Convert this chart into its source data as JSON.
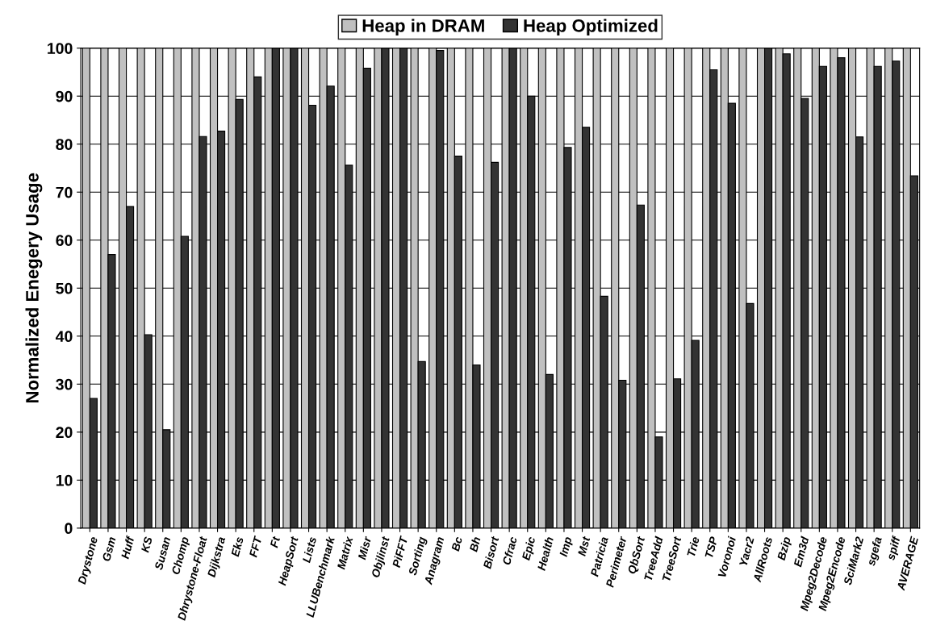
{
  "chart_data": {
    "type": "bar",
    "ylabel": "Normalized Enegery Usage",
    "categories": [
      "Drystone",
      "Gsm",
      "Huff",
      "KS",
      "Susan",
      "Chomp",
      "Dhrystone-Float",
      "Dijkstra",
      "Eks",
      "FFT",
      "Ft",
      "HeapSort",
      "Lists",
      "LLUBenchmark",
      "Matrix",
      "Misr",
      "Objlinst",
      "PiFFT",
      "Sorting",
      "Anagram",
      "Bc",
      "Bh",
      "Bisort",
      "Cfrac",
      "Epic",
      "Health",
      "Imp",
      "Mst",
      "Patricia",
      "Perimeter",
      "QbSort",
      "TreeAdd",
      "TreeSort",
      "Trie",
      "TSP",
      "Voronoi",
      "Yacr2",
      "AllRoots",
      "Bzip",
      "Em3d",
      "Mpeg2Decode",
      "Mpeg2Encode",
      "SciMark2",
      "sgefa",
      "spiff",
      "AVERAGE"
    ],
    "series": [
      {
        "name": "Heap in DRAM",
        "color": "#c0c0c0",
        "values": [
          100,
          100,
          100,
          100,
          100,
          100,
          100,
          100,
          100,
          100,
          100,
          100,
          100,
          100,
          100,
          100,
          100,
          100,
          100,
          100,
          100,
          100,
          100,
          100,
          100,
          100,
          100,
          100,
          100,
          100,
          100,
          100,
          100,
          100,
          100,
          100,
          100,
          100,
          100,
          100,
          100,
          100,
          100,
          100,
          100,
          100
        ]
      },
      {
        "name": "Heap Optimized",
        "color": "#333333",
        "values": [
          27,
          57,
          67,
          40.3,
          20.5,
          60.8,
          81.6,
          82.7,
          89.3,
          94,
          100,
          100,
          88.1,
          92.1,
          75.6,
          95.8,
          100,
          100,
          34.7,
          99.5,
          77.5,
          34,
          76.2,
          100,
          90,
          32,
          79.3,
          83.5,
          48.3,
          30.8,
          67.3,
          19,
          31.1,
          39.1,
          95.5,
          88.5,
          46.8,
          100,
          98.8,
          89.5,
          96.2,
          98,
          81.5,
          96.2,
          97.3,
          73.4
        ]
      }
    ],
    "ylim": [
      0,
      100
    ],
    "yticks": [
      0,
      10,
      20,
      30,
      40,
      50,
      60,
      70,
      80,
      90,
      100
    ],
    "grid": "y",
    "legend": "top"
  }
}
